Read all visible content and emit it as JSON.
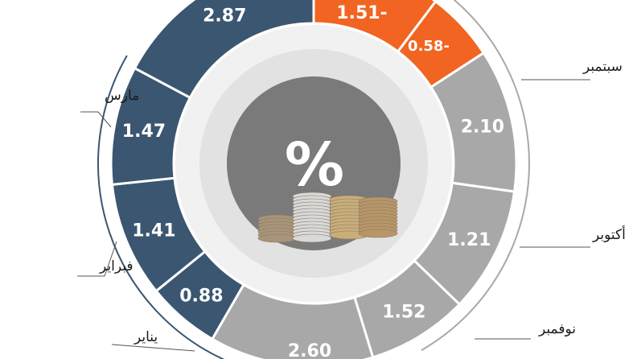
{
  "chart_data": {
    "type": "pie",
    "center_symbol": "%",
    "segments": [
      {
        "value": "0.88",
        "label": "يناير",
        "color": "#3b5670"
      },
      {
        "value": "1.41",
        "label": "فبراير",
        "color": "#3b5670"
      },
      {
        "value": "1.47",
        "label": "مارس",
        "color": "#3b5670"
      },
      {
        "value": "2.87",
        "label": "",
        "color": "#3b5670"
      },
      {
        "value": "1.51-",
        "label": "",
        "color": "#f26422"
      },
      {
        "value": "0.58-",
        "label": "",
        "color": "#f26422"
      },
      {
        "value": "2.10",
        "label": "سبتمبر",
        "color": "#a8a8a8"
      },
      {
        "value": "1.21",
        "label": "أكتوبر",
        "color": "#a8a8a8"
      },
      {
        "value": "1.52",
        "label": "نوفمبر",
        "color": "#a8a8a8"
      },
      {
        "value": "2.60",
        "label": "",
        "color": "#a8a8a8"
      }
    ]
  }
}
